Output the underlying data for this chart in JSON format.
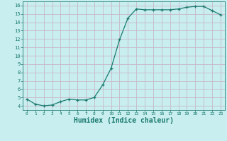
{
  "x": [
    0,
    1,
    2,
    3,
    4,
    5,
    6,
    7,
    8,
    9,
    10,
    11,
    12,
    13,
    14,
    15,
    16,
    17,
    18,
    19,
    20,
    21,
    22,
    23
  ],
  "y": [
    4.8,
    4.2,
    4.0,
    4.1,
    4.5,
    4.8,
    4.7,
    4.7,
    5.0,
    6.5,
    8.5,
    11.9,
    14.5,
    15.6,
    15.5,
    15.5,
    15.5,
    15.5,
    15.6,
    15.8,
    15.9,
    15.9,
    15.4,
    14.9
  ],
  "line_color": "#1a7a6e",
  "marker": "+",
  "marker_size": 3,
  "background_color": "#c8eef0",
  "grid_color": "#c8b8c8",
  "axis_color": "#1a7a6e",
  "xlabel": "Humidex (Indice chaleur)",
  "xlabel_fontsize": 7,
  "xlim": [
    -0.5,
    23.5
  ],
  "ylim": [
    3.5,
    16.5
  ],
  "yticks": [
    4,
    5,
    6,
    7,
    8,
    9,
    10,
    11,
    12,
    13,
    14,
    15,
    16
  ],
  "xticks": [
    0,
    1,
    2,
    3,
    4,
    5,
    6,
    7,
    8,
    9,
    10,
    11,
    12,
    13,
    14,
    15,
    16,
    17,
    18,
    19,
    20,
    21,
    22,
    23
  ]
}
